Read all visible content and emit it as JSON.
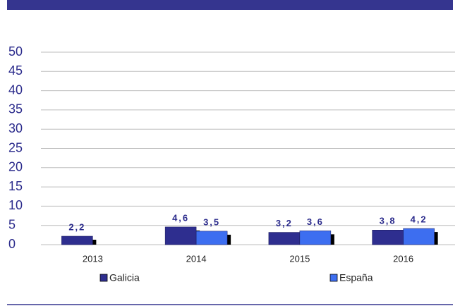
{
  "chart_data": {
    "type": "bar",
    "categories": [
      "2013",
      "2014",
      "2015",
      "2016"
    ],
    "series": [
      {
        "name": "Galicia",
        "color": "#2e2e8f",
        "values": [
          2.2,
          4.6,
          3.2,
          3.8
        ],
        "value_labels": [
          "2,2",
          "4,6",
          "3,2",
          "3,8"
        ]
      },
      {
        "name": "España",
        "color": "#3d6ef0",
        "values": [
          null,
          3.5,
          3.6,
          4.2
        ],
        "value_labels": [
          null,
          "3,5",
          "3,6",
          "4,2"
        ]
      }
    ],
    "ylim": [
      0,
      50
    ],
    "yticks": [
      0,
      5,
      10,
      15,
      20,
      25,
      30,
      35,
      40,
      45,
      50
    ],
    "grid": true
  }
}
